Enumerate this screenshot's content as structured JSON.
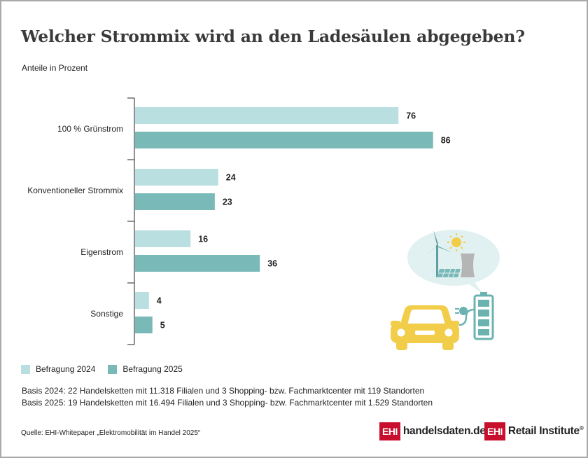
{
  "title": "Welcher Strommix wird an den Ladesäulen abgegeben?",
  "subtitle": "Anteile in Prozent",
  "chart_data": {
    "type": "bar",
    "orientation": "horizontal",
    "categories": [
      "100 % Grünstrom",
      "Konventioneller Strommix",
      "Eigenstrom",
      "Sonstige"
    ],
    "series": [
      {
        "name": "Befragung 2024",
        "color": "#b9dfe0",
        "values": [
          76,
          24,
          16,
          4
        ]
      },
      {
        "name": "Befragung 2025",
        "color": "#79b9b8",
        "values": [
          86,
          23,
          36,
          5
        ]
      }
    ],
    "xlim": [
      0,
      100
    ],
    "data_labels": true,
    "grid": false,
    "legend_placement": "bottom-left"
  },
  "legend": {
    "item_2024": "Befragung 2024",
    "item_2025": "Befragung 2025"
  },
  "basis": {
    "line_2024": "Basis 2024: 22 Handelsketten mit 11.318 Filialen und 3 Shopping- bzw. Fachmarktcenter mit 119 Standorten",
    "line_2025": "Basis 2025: 19 Handelsketten mit 16.494 Filialen und 3 Shopping- bzw. Fachmarktcenter mit 1.529 Standorten"
  },
  "source": "Quelle: EHI-Whitepaper „Elektromobilität im Handel 2025“",
  "logos": {
    "handelsdaten_box": "EHI",
    "handelsdaten_text": "handelsdaten.de",
    "retail_box": "EHI",
    "retail_text": "Retail Institute",
    "retail_mark": "®"
  },
  "colors": {
    "brand_red": "#c8102e",
    "bar_2024": "#b9dfe0",
    "bar_2025": "#79b9b8",
    "car_yellow": "#f2cd4a",
    "battery_teal": "#6bb3b1"
  },
  "illustration": {
    "icons": [
      "wind-turbine-icon",
      "sun-icon",
      "cooling-tower-icon",
      "solar-panel-icon",
      "car-icon",
      "charging-plug-icon",
      "battery-icon"
    ]
  }
}
